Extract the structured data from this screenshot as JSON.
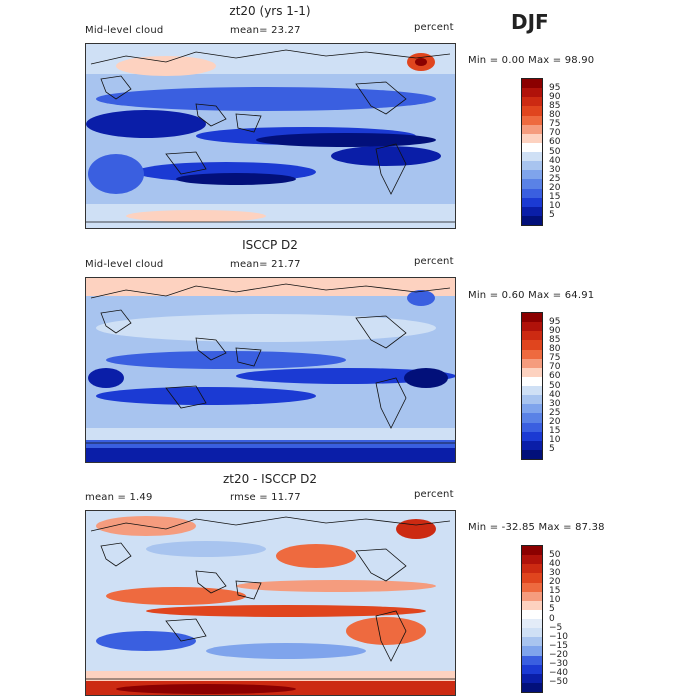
{
  "season": "DJF",
  "panels": [
    {
      "title": "zt20 (yrs 1-1)",
      "left_label": "Mid-level cloud",
      "center_label": "mean=  23.27",
      "right_label": "percent",
      "minmax": "Min =   0.00 Max =  98.90",
      "colorbar_levels": [
        "95",
        "90",
        "85",
        "80",
        "75",
        "70",
        "60",
        "50",
        "40",
        "30",
        "25",
        "20",
        "15",
        "10",
        "5"
      ],
      "colorbar_colors": [
        "#8b0000",
        "#b0120a",
        "#cc2a12",
        "#e0451e",
        "#ee6a3f",
        "#f59c7e",
        "#fdd2c0",
        "#ffffff",
        "#cfe0f5",
        "#a8c4ef",
        "#7fa4ec",
        "#5a82e6",
        "#3a5fe0",
        "#1b3ad3",
        "#0a1ea8",
        "#02107a"
      ]
    },
    {
      "title": "ISCCP D2",
      "left_label": "Mid-level cloud",
      "center_label": "mean=  21.77",
      "right_label": "percent",
      "minmax": "Min =   0.60 Max =  64.91",
      "colorbar_levels": [
        "95",
        "90",
        "85",
        "80",
        "75",
        "70",
        "60",
        "50",
        "40",
        "30",
        "25",
        "20",
        "15",
        "10",
        "5"
      ],
      "colorbar_colors": [
        "#8b0000",
        "#b0120a",
        "#cc2a12",
        "#e0451e",
        "#ee6a3f",
        "#f59c7e",
        "#fdd2c0",
        "#ffffff",
        "#cfe0f5",
        "#a8c4ef",
        "#7fa4ec",
        "#5a82e6",
        "#3a5fe0",
        "#1b3ad3",
        "#0a1ea8",
        "#02107a"
      ]
    },
    {
      "title": "zt20 - ISCCP D2",
      "left_label": "mean =    1.49",
      "center_label": "rmse =   11.77",
      "right_label": "percent",
      "minmax": "Min = -32.85 Max =  87.38",
      "colorbar_levels": [
        "50",
        "40",
        "30",
        "20",
        "15",
        "10",
        "5",
        "0",
        "−5",
        "−10",
        "−15",
        "−20",
        "−30",
        "−40",
        "−50"
      ],
      "colorbar_colors": [
        "#8b0000",
        "#b0120a",
        "#cc2a12",
        "#e0451e",
        "#ee6a3f",
        "#f59c7e",
        "#fdd2c0",
        "#ffffff",
        "#e3ecf8",
        "#cfe0f5",
        "#a8c4ef",
        "#7fa4ec",
        "#3a5fe0",
        "#1b3ad3",
        "#0a1ea8",
        "#02107a"
      ]
    }
  ],
  "colors": {
    "deep_blue": "#0a1ea8",
    "mid_blue": "#3a5fe0",
    "light_blue": "#a8c4ef",
    "pale": "#e8eff8",
    "salmon": "#f59c7e",
    "red": "#cc2a12",
    "dark_red": "#8b0000"
  }
}
